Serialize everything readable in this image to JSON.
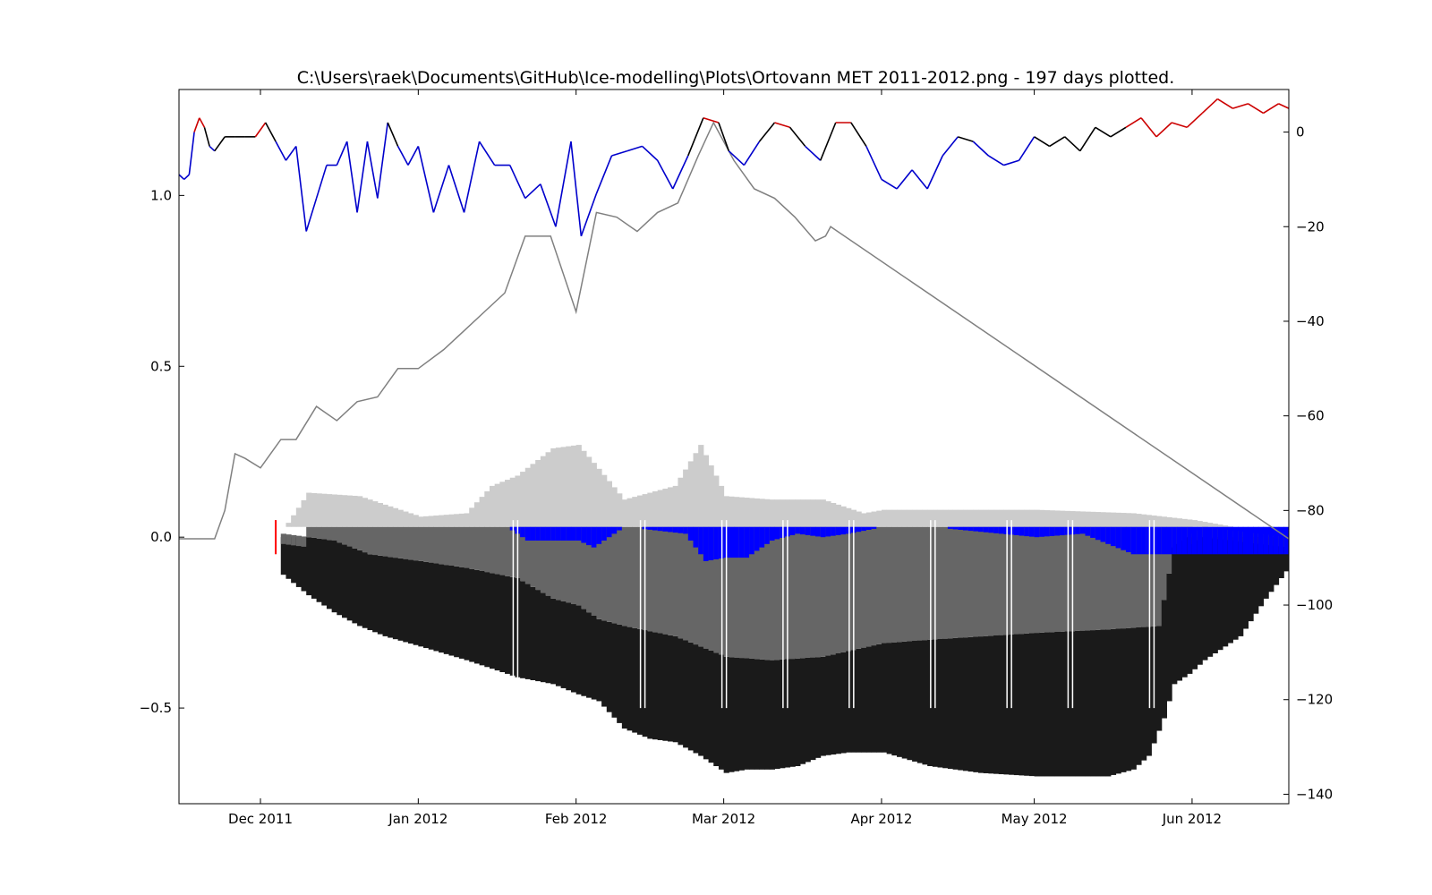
{
  "chart_data": {
    "type": "area",
    "title": "C:\\Users\\raek\\Documents\\GitHub\\Ice-modelling\\Plots\\Ortovann MET 2011-2012.png - 197 days plotted.",
    "xlabel": "",
    "ylabel": "",
    "x_tick_labels": [
      "Dec 2011",
      "Jan 2012",
      "Feb 2012",
      "Mar 2012",
      "Apr 2012",
      "May 2012",
      "Jun 2012"
    ],
    "y_left_tick_labels": [
      "−0.5",
      "0.0",
      "0.5",
      "1.0"
    ],
    "y_right_tick_labels": [
      "−140",
      "−120",
      "−100",
      "−80",
      "−60",
      "−40",
      "−20",
      "0"
    ],
    "xlim": [
      "2011-11-15",
      "2012-06-20"
    ],
    "ylim_left": [
      -0.78,
      1.31
    ],
    "ylim_right": [
      -142,
      9
    ],
    "grid": false,
    "legend": "none",
    "colors": {
      "black_ice": "#1a1a1a",
      "slush_ice": "#666666",
      "snow": "#cccccc",
      "slush": "#0000ff",
      "air_temp_subzero": "#0000cc",
      "air_temp_mild": "#000000",
      "air_temp_above_zero": "#cc0000",
      "degree_days": "#808080",
      "marker": "#ff0000",
      "separator": "#ffffff"
    },
    "series": [
      {
        "role": "air temperature (right axis)",
        "dates": [
          "2011-11-15",
          "2011-11-16",
          "2011-11-17",
          "2011-11-18",
          "2011-11-19",
          "2011-11-20",
          "2011-11-21",
          "2011-11-22",
          "2011-11-24",
          "2011-11-26",
          "2011-11-28",
          "2011-11-30",
          "2011-12-02",
          "2011-12-04",
          "2011-12-06",
          "2011-12-08",
          "2011-12-10",
          "2011-12-12",
          "2011-12-14",
          "2011-12-16",
          "2011-12-18",
          "2011-12-20",
          "2011-12-22",
          "2011-12-24",
          "2011-12-26",
          "2011-12-28",
          "2011-12-30",
          "2012-01-01",
          "2012-01-04",
          "2012-01-07",
          "2012-01-10",
          "2012-01-13",
          "2012-01-16",
          "2012-01-19",
          "2012-01-22",
          "2012-01-25",
          "2012-01-28",
          "2012-01-31",
          "2012-02-02",
          "2012-02-05",
          "2012-02-08",
          "2012-02-11",
          "2012-02-14",
          "2012-02-17",
          "2012-02-20",
          "2012-02-23",
          "2012-02-26",
          "2012-02-29",
          "2012-03-02",
          "2012-03-05",
          "2012-03-08",
          "2012-03-11",
          "2012-03-14",
          "2012-03-17",
          "2012-03-20",
          "2012-03-23",
          "2012-03-26",
          "2012-03-29",
          "2012-04-01",
          "2012-04-04",
          "2012-04-07",
          "2012-04-10",
          "2012-04-13",
          "2012-04-16",
          "2012-04-19",
          "2012-04-22",
          "2012-04-25",
          "2012-04-28",
          "2012-05-01",
          "2012-05-04",
          "2012-05-07",
          "2012-05-10",
          "2012-05-13",
          "2012-05-16",
          "2012-05-19",
          "2012-05-22",
          "2012-05-25",
          "2012-05-28",
          "2012-05-31",
          "2012-06-03",
          "2012-06-06",
          "2012-06-09",
          "2012-06-12",
          "2012-06-15",
          "2012-06-18",
          "2012-06-20"
        ],
        "values": [
          -9,
          -10,
          -9,
          0,
          3,
          1,
          -3,
          -4,
          -1,
          -1,
          -1,
          -1,
          2,
          -2,
          -6,
          -3,
          -21,
          -14,
          -7,
          -7,
          -2,
          -17,
          -2,
          -14,
          2,
          -3,
          -7,
          -3,
          -17,
          -7,
          -17,
          -2,
          -7,
          -7,
          -14,
          -11,
          -20,
          -2,
          -22,
          -13,
          -5,
          -4,
          -3,
          -6,
          -12,
          -5,
          3,
          2,
          -4,
          -7,
          -2,
          2,
          1,
          -3,
          -6,
          2,
          2,
          -3,
          -10,
          -12,
          -8,
          -12,
          -5,
          -1,
          -2,
          -5,
          -7,
          -6,
          -1,
          -3,
          -1,
          -4,
          1,
          -1,
          1,
          3,
          -1,
          2,
          1,
          4,
          7,
          5,
          6,
          4,
          6,
          5
        ]
      },
      {
        "role": "cumulative degree days (right axis)",
        "dates": [
          "2011-11-15",
          "2011-11-22",
          "2011-11-24",
          "2011-11-26",
          "2011-11-28",
          "2011-12-01",
          "2011-12-05",
          "2011-12-08",
          "2011-12-12",
          "2011-12-16",
          "2011-12-20",
          "2011-12-24",
          "2011-12-28",
          "2012-01-01",
          "2012-01-06",
          "2012-01-10",
          "2012-01-14",
          "2012-01-18",
          "2012-01-22",
          "2012-01-27",
          "2012-02-01",
          "2012-02-05",
          "2012-02-09",
          "2012-02-13",
          "2012-02-17",
          "2012-02-21",
          "2012-02-25",
          "2012-02-28",
          "2012-03-03",
          "2012-03-07",
          "2012-03-11",
          "2012-03-15",
          "2012-03-19",
          "2012-03-21",
          "2012-03-22",
          "2012-06-20"
        ],
        "values": [
          -86,
          -86,
          -80,
          -68,
          -69,
          -71,
          -65,
          -65,
          -58,
          -61,
          -57,
          -56,
          -50,
          -50,
          -46,
          -42,
          -38,
          -34,
          -22,
          -22,
          -38,
          -17,
          -18,
          -21,
          -17,
          -15,
          -5,
          2,
          -6,
          -12,
          -14,
          -18,
          -23,
          -22,
          -20,
          -86
        ]
      },
      {
        "role": "black ice (left axis, extends below zero)",
        "dates": [
          "2011-12-05",
          "2011-12-10",
          "2011-12-15",
          "2011-12-20",
          "2011-12-25",
          "2012-01-01",
          "2012-01-10",
          "2012-01-20",
          "2012-01-27",
          "2012-02-01",
          "2012-02-05",
          "2012-02-10",
          "2012-02-15",
          "2012-02-20",
          "2012-02-25",
          "2012-03-01",
          "2012-03-05",
          "2012-03-10",
          "2012-03-15",
          "2012-03-20",
          "2012-03-25",
          "2012-04-01",
          "2012-04-10",
          "2012-04-20",
          "2012-05-01",
          "2012-05-10",
          "2012-05-15",
          "2012-05-20",
          "2012-05-23",
          "2012-05-26",
          "2012-05-28",
          "2012-05-31",
          "2012-06-03",
          "2012-06-10",
          "2012-06-15",
          "2012-06-20"
        ],
        "values": [
          -0.11,
          -0.17,
          -0.22,
          -0.26,
          -0.29,
          -0.32,
          -0.36,
          -0.41,
          -0.43,
          -0.46,
          -0.48,
          -0.56,
          -0.59,
          -0.6,
          -0.64,
          -0.69,
          -0.68,
          -0.68,
          -0.67,
          -0.64,
          -0.63,
          -0.63,
          -0.67,
          -0.69,
          -0.7,
          -0.7,
          -0.7,
          -0.68,
          -0.64,
          -0.53,
          -0.43,
          -0.4,
          -0.36,
          -0.29,
          -0.18,
          -0.08
        ]
      },
      {
        "role": "slush ice (left axis)",
        "dates": [
          "2011-12-05",
          "2011-12-15",
          "2011-12-22",
          "2012-01-01",
          "2012-01-10",
          "2012-01-20",
          "2012-01-27",
          "2012-02-01",
          "2012-02-05",
          "2012-02-10",
          "2012-02-20",
          "2012-03-01",
          "2012-03-10",
          "2012-03-20",
          "2012-04-01",
          "2012-04-10",
          "2012-05-01",
          "2012-05-15",
          "2012-05-25",
          "2012-05-28",
          "2012-06-03",
          "2012-06-20"
        ],
        "values": [
          0.01,
          -0.01,
          -0.05,
          -0.07,
          -0.09,
          -0.12,
          -0.18,
          -0.2,
          -0.24,
          -0.26,
          -0.29,
          -0.35,
          -0.36,
          -0.35,
          -0.31,
          -0.3,
          -0.28,
          -0.27,
          -0.26,
          -0.03,
          0.03,
          0.0
        ]
      },
      {
        "role": "snow (left axis)",
        "dates": [
          "2011-12-05",
          "2011-12-10",
          "2011-12-20",
          "2012-01-01",
          "2012-01-10",
          "2012-01-15",
          "2012-01-20",
          "2012-01-27",
          "2012-02-01",
          "2012-02-05",
          "2012-02-10",
          "2012-02-15",
          "2012-02-20",
          "2012-02-25",
          "2012-03-01",
          "2012-03-10",
          "2012-03-20",
          "2012-03-28",
          "2012-04-01",
          "2012-05-01",
          "2012-05-20",
          "2012-06-01",
          "2012-06-20"
        ],
        "values": [
          0.02,
          0.13,
          0.12,
          0.06,
          0.07,
          0.15,
          0.18,
          0.26,
          0.27,
          0.2,
          0.11,
          0.13,
          0.15,
          0.27,
          0.12,
          0.11,
          0.11,
          0.07,
          0.08,
          0.08,
          0.07,
          0.05,
          0.0
        ]
      },
      {
        "role": "slush layer (left axis)",
        "dates": [
          "2012-01-18",
          "2012-01-22",
          "2012-01-26",
          "2012-02-01",
          "2012-02-04",
          "2012-02-10",
          "2012-02-22",
          "2012-02-26",
          "2012-03-01",
          "2012-03-05",
          "2012-03-10",
          "2012-03-15",
          "2012-03-20",
          "2012-03-25",
          "2012-04-01",
          "2012-04-10",
          "2012-05-01",
          "2012-05-10",
          "2012-05-20"
        ],
        "values": [
          0.0,
          0.04,
          0.04,
          0.04,
          0.06,
          0.0,
          0.02,
          0.1,
          0.09,
          0.09,
          0.04,
          0.02,
          0.03,
          0.02,
          0.0,
          0.0,
          0.03,
          0.02,
          0.08
        ]
      }
    ]
  }
}
